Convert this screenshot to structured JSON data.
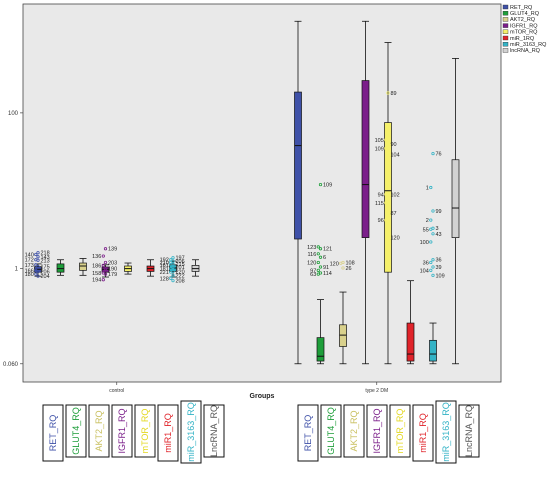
{
  "chart_data": {
    "type": "box",
    "xlabel": "Groups",
    "ylabel": "",
    "y_scale": "log",
    "y_ticks": [
      {
        "value": 0.06,
        "label": "0.060"
      },
      {
        "value": 1,
        "label": "1"
      },
      {
        "value": 100,
        "label": "100"
      }
    ],
    "ylim": [
      0.035,
      2500
    ],
    "grid": false,
    "legend_position": "top-right",
    "groups": [
      "control",
      "type 2 DM"
    ],
    "series": [
      {
        "name": "RET_RQ",
        "color": "#3f51a8",
        "boxes": [
          {
            "min": 0.8,
            "q1": 0.9,
            "median": 0.98,
            "q3": 1.06,
            "max": 1.15,
            "outliers": [
              {
                "value": 1.6,
                "label": "218"
              },
              {
                "value": 1.52,
                "label": "140"
              },
              {
                "value": 1.42,
                "label": "143"
              },
              {
                "value": 1.3,
                "label": "172"
              },
              {
                "value": 1.28,
                "label": "213"
              },
              {
                "value": 1.12,
                "label": "173"
              },
              {
                "value": 1.06,
                "label": "175"
              },
              {
                "value": 0.95,
                "label": "166"
              },
              {
                "value": 0.92,
                "label": "206"
              },
              {
                "value": 0.85,
                "label": "180"
              },
              {
                "value": 0.8,
                "label": "204"
              }
            ]
          },
          {
            "min": 0.06,
            "q1": 2.4,
            "median": 38,
            "q3": 185,
            "max": 1500,
            "outliers": []
          }
        ]
      },
      {
        "name": "GLUT4_RQ",
        "color": "#1e9e3a",
        "boxes": [
          {
            "min": 0.82,
            "q1": 0.9,
            "median": 1.0,
            "q3": 1.15,
            "max": 1.3,
            "outliers": []
          },
          {
            "min": 0.06,
            "q1": 0.065,
            "median": 0.075,
            "q3": 0.13,
            "max": 0.4,
            "outliers": [
              {
                "value": 12,
                "label": "109"
              },
              {
                "value": 1.9,
                "label": "123"
              },
              {
                "value": 1.8,
                "label": "121"
              },
              {
                "value": 1.55,
                "label": "116"
              },
              {
                "value": 1.4,
                "label": "6"
              },
              {
                "value": 1.2,
                "label": "120"
              },
              {
                "value": 1.05,
                "label": "91"
              },
              {
                "value": 0.95,
                "label": "97"
              },
              {
                "value": 0.88,
                "label": "114"
              },
              {
                "value": 0.85,
                "label": "63"
              }
            ]
          }
        ]
      },
      {
        "name": "AKT2_RQ",
        "color": "#d9d18c",
        "boxes": [
          {
            "min": 0.82,
            "q1": 0.95,
            "median": 1.08,
            "q3": 1.18,
            "max": 1.35,
            "outliers": []
          },
          {
            "min": 0.06,
            "q1": 0.1,
            "median": 0.14,
            "q3": 0.19,
            "max": 0.5,
            "outliers": [
              {
                "value": 1.2,
                "label": "108"
              },
              {
                "value": 1.17,
                "label": "120"
              },
              {
                "value": 1.02,
                "label": "26"
              }
            ]
          }
        ]
      },
      {
        "name": "IGFR1_RQ",
        "color": "#7b1f8a",
        "boxes": [
          {
            "min": 0.78,
            "q1": 0.9,
            "median": 0.98,
            "q3": 1.05,
            "max": 1.12,
            "outliers": [
              {
                "value": 1.8,
                "label": "139"
              },
              {
                "value": 1.45,
                "label": "136"
              },
              {
                "value": 1.2,
                "label": "203"
              },
              {
                "value": 1.1,
                "label": "186"
              },
              {
                "value": 1.0,
                "label": "190"
              },
              {
                "value": 0.88,
                "label": "158"
              },
              {
                "value": 0.85,
                "label": "179"
              },
              {
                "value": 0.72,
                "label": "194"
              }
            ]
          },
          {
            "min": 0.06,
            "q1": 2.5,
            "median": 12,
            "q3": 260,
            "max": 1500,
            "outliers": []
          }
        ]
      },
      {
        "name": "mTOR_RQ",
        "color": "#f5f06a",
        "boxes": [
          {
            "min": 0.85,
            "q1": 0.92,
            "median": 1.0,
            "q3": 1.08,
            "max": 1.18,
            "outliers": []
          },
          {
            "min": 0.06,
            "q1": 0.9,
            "median": 10,
            "q3": 75,
            "max": 800,
            "outliers": [
              {
                "value": 180,
                "label": "89"
              },
              {
                "value": 45,
                "label": "105"
              },
              {
                "value": 40,
                "label": "90"
              },
              {
                "value": 35,
                "label": "109"
              },
              {
                "value": 29,
                "label": "104"
              },
              {
                "value": 9,
                "label": "94"
              },
              {
                "value": 9,
                "label": "102"
              },
              {
                "value": 7,
                "label": "115"
              },
              {
                "value": 5.2,
                "label": "87"
              },
              {
                "value": 4.2,
                "label": "96"
              },
              {
                "value": 2.5,
                "label": "120"
              }
            ]
          }
        ]
      },
      {
        "name": "miR_1RQ",
        "color": "#e0232a",
        "boxes": [
          {
            "min": 0.8,
            "q1": 0.92,
            "median": 1.0,
            "q3": 1.08,
            "max": 1.3,
            "outliers": []
          },
          {
            "min": 0.06,
            "q1": 0.065,
            "median": 0.08,
            "q3": 0.2,
            "max": 0.7,
            "outliers": []
          }
        ]
      },
      {
        "name": "miR_3163_RQ",
        "color": "#33b3c6",
        "boxes": [
          {
            "min": 0.78,
            "q1": 0.92,
            "median": 1.02,
            "q3": 1.12,
            "max": 1.25,
            "outliers": [
              {
                "value": 1.38,
                "label": "197"
              },
              {
                "value": 1.3,
                "label": "192"
              },
              {
                "value": 1.25,
                "label": "206"
              },
              {
                "value": 1.2,
                "label": "210"
              },
              {
                "value": 1.15,
                "label": "215"
              },
              {
                "value": 1.12,
                "label": "161"
              },
              {
                "value": 1.05,
                "label": "201"
              },
              {
                "value": 1.0,
                "label": "181"
              },
              {
                "value": 0.92,
                "label": "220"
              },
              {
                "value": 0.9,
                "label": "221"
              },
              {
                "value": 0.82,
                "label": "222"
              },
              {
                "value": 0.75,
                "label": "128"
              },
              {
                "value": 0.7,
                "label": "208"
              }
            ]
          },
          {
            "min": 0.06,
            "q1": 0.065,
            "median": 0.08,
            "q3": 0.12,
            "max": 0.2,
            "outliers": [
              {
                "value": 30,
                "label": "76"
              },
              {
                "value": 11,
                "label": "1"
              },
              {
                "value": 5.5,
                "label": "99"
              },
              {
                "value": 4.2,
                "label": "2"
              },
              {
                "value": 3.3,
                "label": "3"
              },
              {
                "value": 3.2,
                "label": "55"
              },
              {
                "value": 2.8,
                "label": "43"
              },
              {
                "value": 2.2,
                "label": "100"
              },
              {
                "value": 1.3,
                "label": "36"
              },
              {
                "value": 1.2,
                "label": "36"
              },
              {
                "value": 1.05,
                "label": "39"
              },
              {
                "value": 0.95,
                "label": "104"
              },
              {
                "value": 0.82,
                "label": "109"
              }
            ]
          }
        ]
      },
      {
        "name": "lncRNA_RQ",
        "color": "#d2d2d2",
        "boxes": [
          {
            "min": 0.8,
            "q1": 0.92,
            "median": 1.0,
            "q3": 1.1,
            "max": 1.3,
            "outliers": []
          },
          {
            "min": 0.06,
            "q1": 2.5,
            "median": 6,
            "q3": 25,
            "max": 500,
            "outliers": []
          }
        ]
      }
    ],
    "below_labels": [
      {
        "text": "RET_RQ",
        "color": "#3f51a8"
      },
      {
        "text": "GLUT4_RQ",
        "color": "#1e9e3a"
      },
      {
        "text": "AKT2_RQ",
        "color": "#c9c060"
      },
      {
        "text": "IGFR1_RQ",
        "color": "#7b1f8a"
      },
      {
        "text": "mTOR_RQ",
        "color": "#e3d820"
      },
      {
        "text": "miR1_RQ",
        "color": "#e0232a"
      },
      {
        "text": "miR_3163_RQ",
        "color": "#33b3c6"
      },
      {
        "text": "LncRNA_RQ",
        "color": "#555555"
      }
    ]
  }
}
